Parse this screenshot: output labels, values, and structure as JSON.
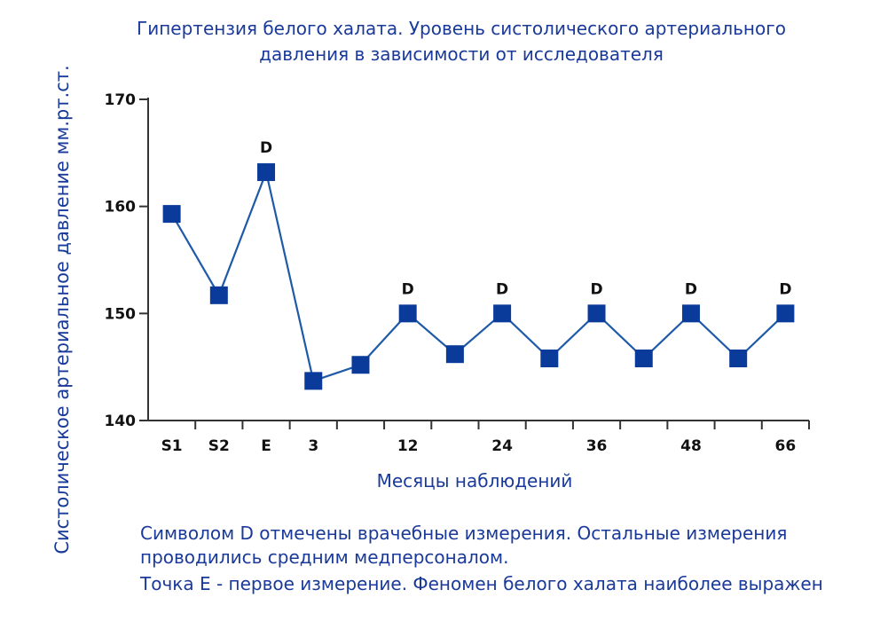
{
  "chart_data": {
    "type": "line",
    "title": "Гипертензия белого халата. Уровень систолического артериального давления в зависимости от исследователя",
    "title_lines": [
      "Гипертензия белого халата. Уровень систолического артериального",
      "давления в зависимости от исследователя"
    ],
    "xlabel": "Месяцы наблюдений",
    "ylabel": "Систолическое артериальное давление мм.рт.ст.",
    "ylim": [
      140,
      170
    ],
    "yticks": [
      140,
      150,
      160,
      170
    ],
    "x_labels": [
      "S1",
      "S2",
      "E",
      "3",
      "",
      "12",
      "",
      "24",
      "",
      "36",
      "",
      "48",
      "",
      "66"
    ],
    "series": [
      {
        "values": [
          159.3,
          151.7,
          163.2,
          143.7,
          145.2,
          150.0,
          146.2,
          150.0,
          145.8,
          150.0,
          145.8,
          150.0,
          145.8,
          150.0
        ],
        "annotations": [
          "",
          "",
          "D",
          "",
          "",
          "D",
          "",
          "D",
          "",
          "D",
          "",
          "D",
          "",
          "D"
        ]
      }
    ],
    "grid": false,
    "colors": {
      "line": "#1f5aa8",
      "marker": "#0b3b9a",
      "text": "#1a3a9a",
      "axis": "#333333"
    }
  },
  "notes": [
    "Символом D отмечены врачебные измерения. Остальные измерения",
    "проводились средним медперсоналом.",
    "Точка Е - первое измерение. Феномен белого халата наиболее выражен"
  ]
}
